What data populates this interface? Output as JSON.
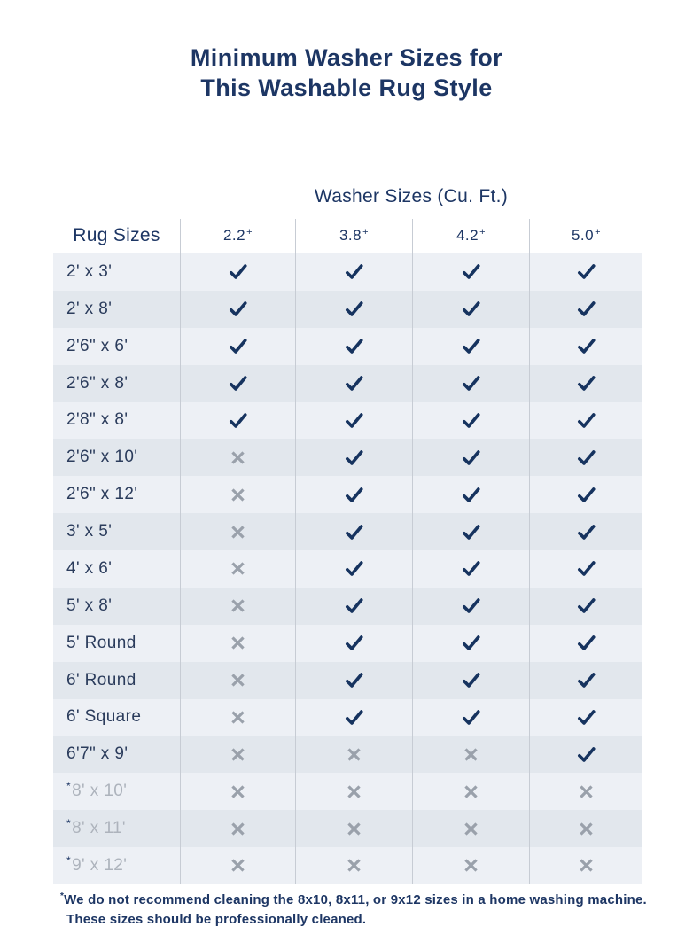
{
  "title": {
    "line1": "Minimum Washer Sizes for",
    "line2": "This Washable Rug Style"
  },
  "chart_data": {
    "type": "table",
    "title": "Minimum Washer Sizes for This Washable Rug Style",
    "group_header": "Washer Sizes (Cu. Ft.)",
    "row_header": "Rug Sizes",
    "columns": [
      "2.2+",
      "3.8+",
      "4.2+",
      "5.0+"
    ],
    "rows": [
      {
        "label": "2' x 3'",
        "asterisk": false,
        "grayed": false,
        "fits": [
          "check",
          "check",
          "check",
          "check"
        ]
      },
      {
        "label": "2' x 8'",
        "asterisk": false,
        "grayed": false,
        "fits": [
          "check",
          "check",
          "check",
          "check"
        ]
      },
      {
        "label": "2'6\" x 6'",
        "asterisk": false,
        "grayed": false,
        "fits": [
          "check",
          "check",
          "check",
          "check"
        ]
      },
      {
        "label": "2'6\" x 8'",
        "asterisk": false,
        "grayed": false,
        "fits": [
          "check",
          "check",
          "check",
          "check"
        ]
      },
      {
        "label": "2'8\" x 8'",
        "asterisk": false,
        "grayed": false,
        "fits": [
          "check",
          "check",
          "check",
          "check"
        ]
      },
      {
        "label": "2'6\" x 10'",
        "asterisk": false,
        "grayed": false,
        "fits": [
          "cross",
          "check",
          "check",
          "check"
        ]
      },
      {
        "label": "2'6\" x 12'",
        "asterisk": false,
        "grayed": false,
        "fits": [
          "cross",
          "check",
          "check",
          "check"
        ]
      },
      {
        "label": "3' x 5'",
        "asterisk": false,
        "grayed": false,
        "fits": [
          "cross",
          "check",
          "check",
          "check"
        ]
      },
      {
        "label": "4' x 6'",
        "asterisk": false,
        "grayed": false,
        "fits": [
          "cross",
          "check",
          "check",
          "check"
        ]
      },
      {
        "label": "5' x 8'",
        "asterisk": false,
        "grayed": false,
        "fits": [
          "cross",
          "check",
          "check",
          "check"
        ]
      },
      {
        "label": "5' Round",
        "asterisk": false,
        "grayed": false,
        "fits": [
          "cross",
          "check",
          "check",
          "check"
        ]
      },
      {
        "label": "6' Round",
        "asterisk": false,
        "grayed": false,
        "fits": [
          "cross",
          "check",
          "check",
          "check"
        ]
      },
      {
        "label": "6' Square",
        "asterisk": false,
        "grayed": false,
        "fits": [
          "cross",
          "check",
          "check",
          "check"
        ]
      },
      {
        "label": "6'7\" x 9'",
        "asterisk": false,
        "grayed": false,
        "fits": [
          "cross",
          "cross",
          "cross",
          "check"
        ]
      },
      {
        "label": "8' x 10'",
        "asterisk": true,
        "grayed": true,
        "fits": [
          "cross",
          "cross",
          "cross",
          "cross"
        ]
      },
      {
        "label": "8' x 11'",
        "asterisk": true,
        "grayed": true,
        "fits": [
          "cross",
          "cross",
          "cross",
          "cross"
        ]
      },
      {
        "label": "9' x 12'",
        "asterisk": true,
        "grayed": true,
        "fits": [
          "cross",
          "cross",
          "cross",
          "cross"
        ]
      }
    ]
  },
  "footnote": {
    "marker": "*",
    "line1": "We do not recommend cleaning the 8x10, 8x11, or 9x12 sizes in a home washing machine.",
    "line2": "These sizes should be professionally cleaned."
  },
  "icons": {
    "check": "check-icon",
    "cross": "cross-icon"
  },
  "colors": {
    "navy": "#1d3664",
    "label": "#2b3c5c",
    "check": "#16335f",
    "cross": "#9aa1ab",
    "row_light": "#edf0f5",
    "row_dark": "#e2e7ed",
    "divider": "#c7ccd4",
    "grayed": "#adb3bc"
  }
}
